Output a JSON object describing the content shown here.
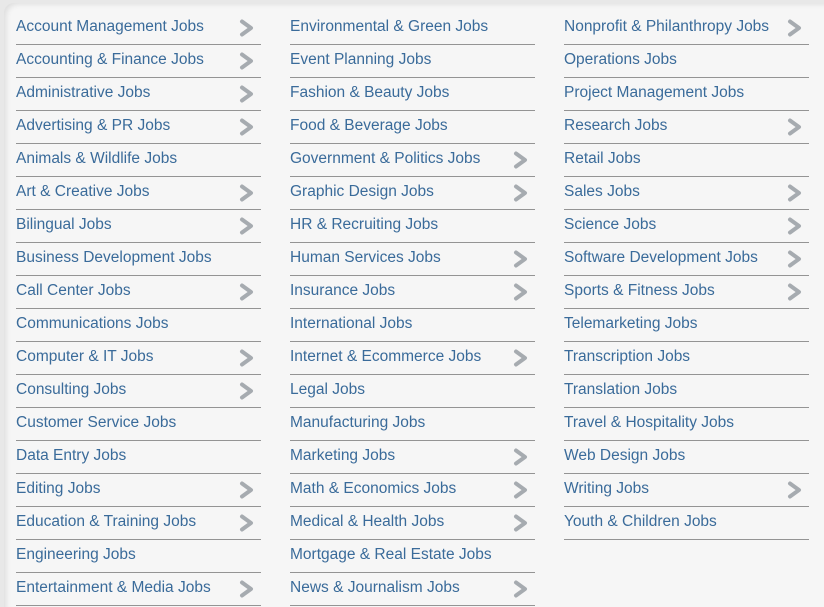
{
  "page": {
    "description": "Job categories directory"
  },
  "colors": {
    "link": "#3a6b9a",
    "divider": "#949494",
    "chevron": "#a6abb0",
    "page_background": "#e8e8e8",
    "panel_background": "#f6f6f6"
  },
  "columns": [
    {
      "name": "column-1",
      "items": [
        {
          "label": "Account Management Jobs",
          "chevron": true
        },
        {
          "label": "Accounting & Finance Jobs",
          "chevron": true
        },
        {
          "label": "Administrative Jobs",
          "chevron": true
        },
        {
          "label": "Advertising & PR Jobs",
          "chevron": true
        },
        {
          "label": "Animals & Wildlife Jobs",
          "chevron": false
        },
        {
          "label": "Art & Creative Jobs",
          "chevron": true
        },
        {
          "label": "Bilingual Jobs",
          "chevron": true
        },
        {
          "label": "Business Development Jobs",
          "chevron": false
        },
        {
          "label": "Call Center Jobs",
          "chevron": true
        },
        {
          "label": "Communications Jobs",
          "chevron": false
        },
        {
          "label": "Computer & IT Jobs",
          "chevron": true
        },
        {
          "label": "Consulting Jobs",
          "chevron": true
        },
        {
          "label": "Customer Service Jobs",
          "chevron": false
        },
        {
          "label": "Data Entry Jobs",
          "chevron": false
        },
        {
          "label": "Editing Jobs",
          "chevron": true
        },
        {
          "label": "Education & Training Jobs",
          "chevron": true
        },
        {
          "label": "Engineering Jobs",
          "chevron": false
        },
        {
          "label": "Entertainment & Media Jobs",
          "chevron": true
        }
      ]
    },
    {
      "name": "column-2",
      "items": [
        {
          "label": "Environmental & Green Jobs",
          "chevron": false
        },
        {
          "label": "Event Planning Jobs",
          "chevron": false
        },
        {
          "label": "Fashion & Beauty Jobs",
          "chevron": false
        },
        {
          "label": "Food & Beverage Jobs",
          "chevron": false
        },
        {
          "label": "Government & Politics Jobs",
          "chevron": true
        },
        {
          "label": "Graphic Design Jobs",
          "chevron": true
        },
        {
          "label": "HR & Recruiting Jobs",
          "chevron": false
        },
        {
          "label": "Human Services Jobs",
          "chevron": true
        },
        {
          "label": "Insurance Jobs",
          "chevron": true
        },
        {
          "label": "International Jobs",
          "chevron": false
        },
        {
          "label": "Internet & Ecommerce Jobs",
          "chevron": true
        },
        {
          "label": "Legal Jobs",
          "chevron": false
        },
        {
          "label": "Manufacturing Jobs",
          "chevron": false
        },
        {
          "label": "Marketing Jobs",
          "chevron": true
        },
        {
          "label": "Math & Economics Jobs",
          "chevron": true
        },
        {
          "label": "Medical & Health Jobs",
          "chevron": true
        },
        {
          "label": "Mortgage & Real Estate Jobs",
          "chevron": false
        },
        {
          "label": "News & Journalism Jobs",
          "chevron": true
        }
      ]
    },
    {
      "name": "column-3",
      "items": [
        {
          "label": "Nonprofit & Philanthropy Jobs",
          "chevron": true
        },
        {
          "label": "Operations Jobs",
          "chevron": false
        },
        {
          "label": "Project Management Jobs",
          "chevron": false
        },
        {
          "label": "Research Jobs",
          "chevron": true
        },
        {
          "label": "Retail Jobs",
          "chevron": false
        },
        {
          "label": "Sales Jobs",
          "chevron": true
        },
        {
          "label": "Science Jobs",
          "chevron": true
        },
        {
          "label": "Software Development Jobs",
          "chevron": true
        },
        {
          "label": "Sports & Fitness Jobs",
          "chevron": true
        },
        {
          "label": "Telemarketing Jobs",
          "chevron": false
        },
        {
          "label": "Transcription Jobs",
          "chevron": false
        },
        {
          "label": "Translation Jobs",
          "chevron": false
        },
        {
          "label": "Travel & Hospitality Jobs",
          "chevron": false
        },
        {
          "label": "Web Design Jobs",
          "chevron": false
        },
        {
          "label": "Writing Jobs",
          "chevron": true
        },
        {
          "label": "Youth & Children Jobs",
          "chevron": false
        }
      ]
    }
  ],
  "icons": {
    "chevron": "chevron-right-icon"
  }
}
